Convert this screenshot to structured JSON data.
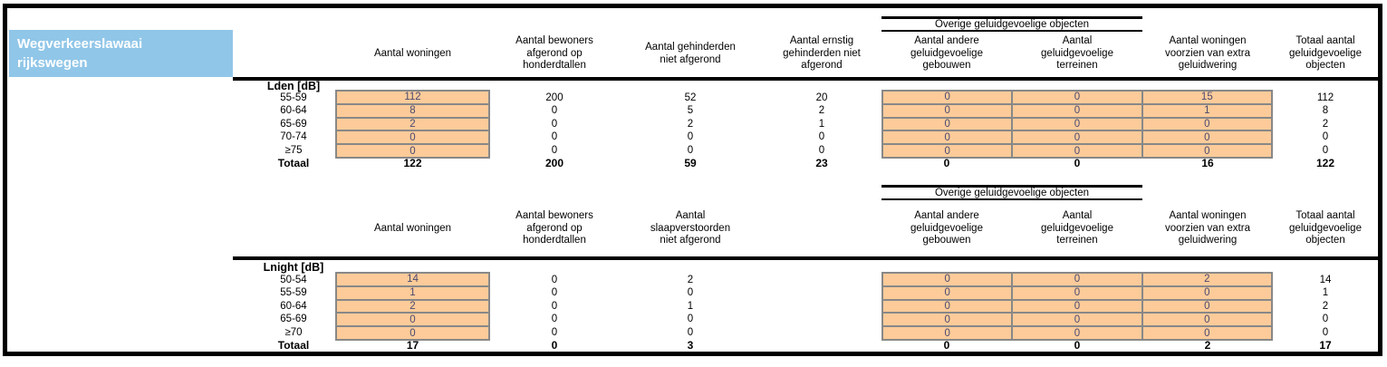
{
  "title": {
    "line1": "Wegverkeerslawaai",
    "line2": "rijkswegen"
  },
  "colors": {
    "title_bg": "#90C6E8",
    "title_text": "#FFFFFF",
    "highlight_bg": "#FCCB99",
    "highlight_border": "#888888",
    "highlight_text": "#4A4971",
    "frame": "#000000"
  },
  "tables": [
    {
      "name": "lden",
      "group_label": "Lden [dB]",
      "span_header": "Overige geluidgevoelige objecten",
      "total_label": "Totaal",
      "columns": [
        "Aantal woningen",
        "Aantal bewoners afgerond op honderdtallen",
        "Aantal gehinderden niet afgerond",
        "Aantal ernstig gehinderden niet afgerond",
        "Aantal andere geluidgevoelige gebouwen",
        "Aantal geluidgevoelige terreinen",
        "Aantal woningen voorzien van extra geluidwering",
        "Totaal aantal geluidgevoelige objecten"
      ],
      "rows": [
        {
          "label": "55-59",
          "values": [
            "112",
            "200",
            "52",
            "20",
            "0",
            "0",
            "15",
            "112"
          ]
        },
        {
          "label": "60-64",
          "values": [
            "8",
            "0",
            "5",
            "2",
            "0",
            "0",
            "1",
            "8"
          ]
        },
        {
          "label": "65-69",
          "values": [
            "2",
            "0",
            "2",
            "1",
            "0",
            "0",
            "0",
            "2"
          ]
        },
        {
          "label": "70-74",
          "values": [
            "0",
            "0",
            "0",
            "0",
            "0",
            "0",
            "0",
            "0"
          ]
        },
        {
          "label": "≥75",
          "values": [
            "0",
            "0",
            "0",
            "0",
            "0",
            "0",
            "0",
            "0"
          ]
        }
      ],
      "total": {
        "label": "Totaal",
        "values": [
          "122",
          "200",
          "59",
          "23",
          "0",
          "0",
          "16",
          "122"
        ]
      }
    },
    {
      "name": "lnight",
      "group_label": "Lnight [dB]",
      "span_header": "Overige geluidgevoelige objecten",
      "total_label": "Totaal",
      "columns": [
        "Aantal woningen",
        "Aantal bewoners afgerond op honderdtallen",
        "Aantal slaapverstoorden niet afgerond",
        "",
        "Aantal andere geluidgevoelige gebouwen",
        "Aantal geluidgevoelige terreinen",
        "Aantal woningen voorzien van extra geluidwering",
        "Totaal aantal geluidgevoelige objecten"
      ],
      "rows": [
        {
          "label": "50-54",
          "values": [
            "14",
            "0",
            "2",
            "",
            "0",
            "0",
            "2",
            "14"
          ]
        },
        {
          "label": "55-59",
          "values": [
            "1",
            "0",
            "0",
            "",
            "0",
            "0",
            "0",
            "1"
          ]
        },
        {
          "label": "60-64",
          "values": [
            "2",
            "0",
            "1",
            "",
            "0",
            "0",
            "0",
            "2"
          ]
        },
        {
          "label": "65-69",
          "values": [
            "0",
            "0",
            "0",
            "",
            "0",
            "0",
            "0",
            "0"
          ]
        },
        {
          "label": "≥70",
          "values": [
            "0",
            "0",
            "0",
            "",
            "0",
            "0",
            "0",
            "0"
          ]
        }
      ],
      "total": {
        "label": "Totaal",
        "values": [
          "17",
          "0",
          "3",
          "",
          "0",
          "0",
          "2",
          "17"
        ]
      }
    }
  ]
}
